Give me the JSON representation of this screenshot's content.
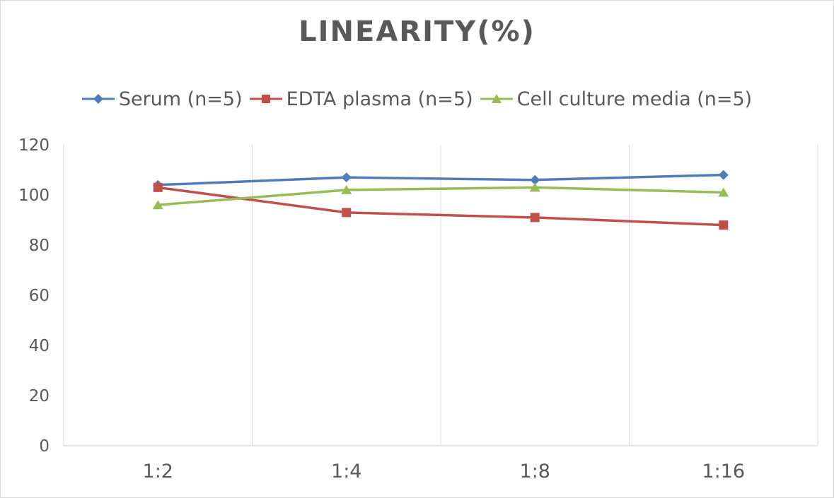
{
  "chart_data": {
    "type": "line",
    "title": "LINEARITY(%)",
    "categories": [
      "1:2",
      "1:4",
      "1:8",
      "1:16"
    ],
    "ylim": [
      0,
      120
    ],
    "yticks": [
      0,
      20,
      40,
      60,
      80,
      100,
      120
    ],
    "grid": "vertical",
    "legend_position": "top",
    "series": [
      {
        "name": "Serum (n=5)",
        "color": "#4f7db8",
        "marker": "diamond",
        "values": [
          104,
          107,
          106,
          108
        ]
      },
      {
        "name": "EDTA plasma (n=5)",
        "color": "#c0504d",
        "marker": "square",
        "values": [
          103,
          93,
          91,
          88
        ]
      },
      {
        "name": "Cell culture media (n=5)",
        "color": "#9bbb59",
        "marker": "triangle",
        "values": [
          96,
          102,
          103,
          101
        ]
      }
    ]
  }
}
